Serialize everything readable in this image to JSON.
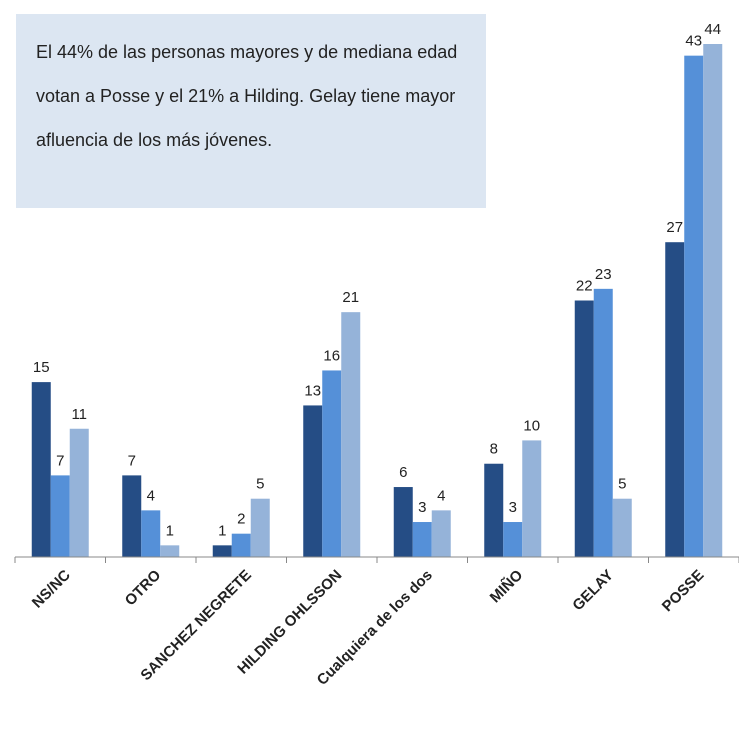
{
  "chart_data": {
    "type": "bar",
    "annotation": "El 44% de las personas mayores y de mediana edad votan a Posse y el 21% a Hilding. Gelay tiene mayor afluencia de los más jóvenes.",
    "categories": [
      "NS/NC",
      "OTRO",
      "SANCHEZ NEGRETE",
      "HILDING OHLSSON",
      "Cualquiera de los dos",
      "MIÑO",
      "GELAY",
      "POSSE"
    ],
    "series": [
      {
        "color": "#254d85",
        "values": [
          15,
          7,
          1,
          13,
          6,
          8,
          22,
          27
        ]
      },
      {
        "color": "#5590d8",
        "values": [
          7,
          4,
          2,
          16,
          3,
          3,
          23,
          43
        ]
      },
      {
        "color": "#95b3d9",
        "values": [
          11,
          1,
          5,
          21,
          4,
          10,
          5,
          44
        ]
      }
    ],
    "ylim": [
      0,
      44
    ]
  }
}
